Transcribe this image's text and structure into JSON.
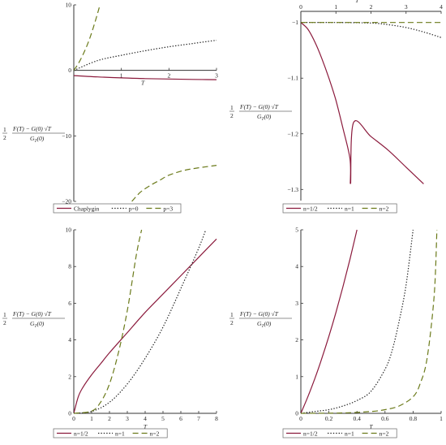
{
  "ylabel": {
    "half": "1",
    "two": "2",
    "numerator": "F(T) − G(0) √T",
    "denominator": "G_T(0)"
  },
  "chart_data": [
    {
      "type": "line",
      "xlabel": "T",
      "xlim": [
        0,
        3
      ],
      "ylim": [
        -20,
        10
      ],
      "xticks": [
        "1",
        "2",
        "3"
      ],
      "yticks": [
        "10",
        "0",
        "−10",
        "−20"
      ],
      "x_axis_at_zero": true,
      "legend": "bottom",
      "series": [
        {
          "name": "Chaplygin",
          "style": "solid",
          "color": "#8b1a3c",
          "x": [
            0,
            0.5,
            1,
            1.5,
            2,
            2.5,
            3
          ],
          "y": [
            -0.8,
            -1.0,
            -1.15,
            -1.25,
            -1.32,
            -1.38,
            -1.42
          ]
        },
        {
          "name": "p=0",
          "style": "dotted",
          "color": "#222222",
          "x": [
            0,
            0.5,
            1,
            1.5,
            2,
            2.5,
            3
          ],
          "y": [
            0,
            1.5,
            2.3,
            3.0,
            3.6,
            4.1,
            4.6
          ]
        },
        {
          "name": "p=3",
          "style": "dashed",
          "color": "#6b7a1a",
          "x": [
            0,
            0.1,
            0.2,
            0.3,
            0.4,
            0.5,
            0.55
          ],
          "y": [
            0,
            1.1,
            2.5,
            4.2,
            6.3,
            8.7,
            10
          ]
        },
        {
          "name": "p=3",
          "style": "dashed",
          "color": "#6b7a1a",
          "x": [
            1.22,
            1.4,
            1.6,
            1.8,
            2.0,
            2.3,
            2.6,
            3.0
          ],
          "y": [
            -20,
            -18.6,
            -17.6,
            -16.8,
            -16.0,
            -15.3,
            -14.9,
            -14.5
          ]
        }
      ]
    },
    {
      "type": "line",
      "xlabel": "T",
      "xlim": [
        0,
        4
      ],
      "ylim": [
        -1.32,
        -0.98
      ],
      "xticks": [
        "0",
        "1",
        "2",
        "3",
        "4"
      ],
      "yticks": [
        "−1",
        "−1.1",
        "−1.2",
        "−1.3"
      ],
      "x_axis_on_top": true,
      "legend": "bottom",
      "series": [
        {
          "name": "n=1/2",
          "style": "solid",
          "color": "#8b1a3c",
          "x": [
            0,
            0.2,
            0.4,
            0.6,
            0.8,
            1.0,
            1.2,
            1.4,
            1.41
          ],
          "y": [
            -1.0,
            -1.012,
            -1.035,
            -1.065,
            -1.1,
            -1.14,
            -1.19,
            -1.245,
            -1.29
          ]
        },
        {
          "name": "n=1/2",
          "style": "solid",
          "color": "#8b1a3c",
          "x": [
            1.42,
            1.5,
            2.0,
            2.5,
            3.0,
            3.5
          ],
          "y": [
            -1.29,
            -1.18,
            -1.205,
            -1.23,
            -1.26,
            -1.29
          ]
        },
        {
          "name": "n=1",
          "style": "dotted",
          "color": "#222222",
          "x": [
            0,
            1,
            2,
            2.5,
            3,
            3.5,
            4
          ],
          "y": [
            -1.0,
            -1.0,
            -1.001,
            -1.004,
            -1.009,
            -1.017,
            -1.027
          ]
        },
        {
          "name": "n=2",
          "style": "dashed",
          "color": "#6b7a1a",
          "x": [
            0,
            1,
            2,
            3,
            4
          ],
          "y": [
            -1.0,
            -1.0,
            -1.0,
            -1.0,
            -1.0
          ]
        }
      ]
    },
    {
      "type": "line",
      "xlabel": "T",
      "xlim": [
        0,
        8
      ],
      "ylim": [
        0,
        10
      ],
      "xticks": [
        "0",
        "1",
        "2",
        "3",
        "4",
        "5",
        "6",
        "7",
        "8"
      ],
      "yticks": [
        "0",
        "2",
        "4",
        "6",
        "8",
        "10"
      ],
      "legend": "bottom",
      "series": [
        {
          "name": "n=1/2",
          "style": "solid",
          "color": "#8b1a3c",
          "x": [
            0,
            0.25,
            0.5,
            1,
            1.5,
            2,
            3,
            4,
            5,
            6,
            7,
            8
          ],
          "y": [
            0,
            0.9,
            1.4,
            2.1,
            2.7,
            3.3,
            4.4,
            5.5,
            6.5,
            7.5,
            8.5,
            9.5
          ]
        },
        {
          "name": "n=1",
          "style": "dotted",
          "color": "#222222",
          "x": [
            0,
            1,
            2,
            3,
            4,
            5,
            6,
            7,
            7.4
          ],
          "y": [
            0,
            0.1,
            0.6,
            1.6,
            3.0,
            4.7,
            6.8,
            9.0,
            10
          ]
        },
        {
          "name": "n=2",
          "style": "dashed",
          "color": "#6b7a1a",
          "x": [
            0,
            1,
            1.5,
            2,
            2.5,
            3,
            3.5,
            3.8
          ],
          "y": [
            0,
            0.12,
            0.6,
            1.6,
            3.3,
            5.6,
            8.6,
            10
          ]
        }
      ]
    },
    {
      "type": "line",
      "xlabel": "T",
      "xlim": [
        0,
        1
      ],
      "ylim": [
        0,
        5
      ],
      "xticks": [
        "0",
        "0.2",
        "0.4",
        "0.6",
        "0.8",
        "1"
      ],
      "yticks": [
        "0",
        "1",
        "2",
        "3",
        "4",
        "5"
      ],
      "legend": "bottom",
      "series": [
        {
          "name": "n=1/2",
          "style": "solid",
          "color": "#8b1a3c",
          "x": [
            0,
            0.05,
            0.1,
            0.15,
            0.2,
            0.25,
            0.3,
            0.35,
            0.4
          ],
          "y": [
            0,
            0.45,
            0.95,
            1.5,
            2.1,
            2.75,
            3.45,
            4.2,
            5
          ]
        },
        {
          "name": "n=1",
          "style": "dotted",
          "color": "#222222",
          "x": [
            0,
            0.1,
            0.2,
            0.3,
            0.4,
            0.5,
            0.6,
            0.65,
            0.7,
            0.75,
            0.8
          ],
          "y": [
            0,
            0.05,
            0.1,
            0.2,
            0.35,
            0.6,
            1.2,
            1.7,
            2.5,
            3.5,
            5
          ]
        },
        {
          "name": "n=2",
          "style": "dashed",
          "color": "#6b7a1a",
          "x": [
            0,
            0.3,
            0.5,
            0.6,
            0.7,
            0.8,
            0.85,
            0.9,
            0.95,
            0.97
          ],
          "y": [
            0,
            0.01,
            0.05,
            0.1,
            0.2,
            0.45,
            0.8,
            1.5,
            3.2,
            5
          ]
        }
      ]
    }
  ]
}
